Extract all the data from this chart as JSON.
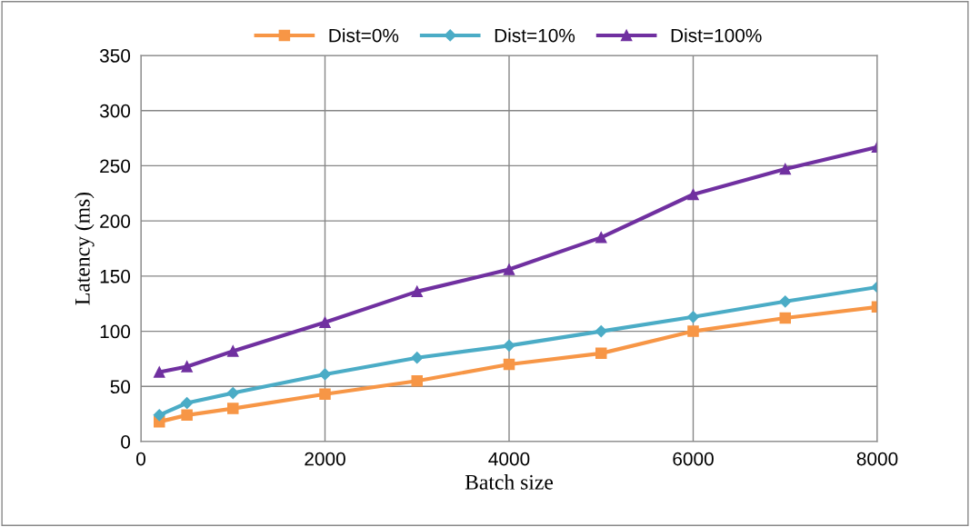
{
  "chart_data": {
    "type": "line",
    "xlabel": "Batch size",
    "ylabel": "Latency (ms)",
    "x": [
      200,
      500,
      1000,
      2000,
      3000,
      4000,
      5000,
      6000,
      7000,
      8000
    ],
    "series": [
      {
        "name": "Dist=0%",
        "color": "#f79646",
        "marker": "square",
        "values": [
          18,
          24,
          30,
          43,
          55,
          70,
          80,
          100,
          112,
          122
        ]
      },
      {
        "name": "Dist=10%",
        "color": "#4bacc6",
        "marker": "diamond",
        "values": [
          24,
          35,
          44,
          61,
          76,
          87,
          100,
          113,
          127,
          140
        ]
      },
      {
        "name": "Dist=100%",
        "color": "#7030a0",
        "marker": "triangle",
        "values": [
          63,
          68,
          82,
          108,
          136,
          156,
          185,
          224,
          247,
          267
        ]
      }
    ],
    "xlim": [
      0,
      8000
    ],
    "xticks": [
      0,
      2000,
      4000,
      6000,
      8000
    ],
    "ylim": [
      0,
      350
    ],
    "yticks": [
      0,
      50,
      100,
      150,
      200,
      250,
      300,
      350
    ],
    "grid": true,
    "legend": "top",
    "line_style": "solid"
  }
}
